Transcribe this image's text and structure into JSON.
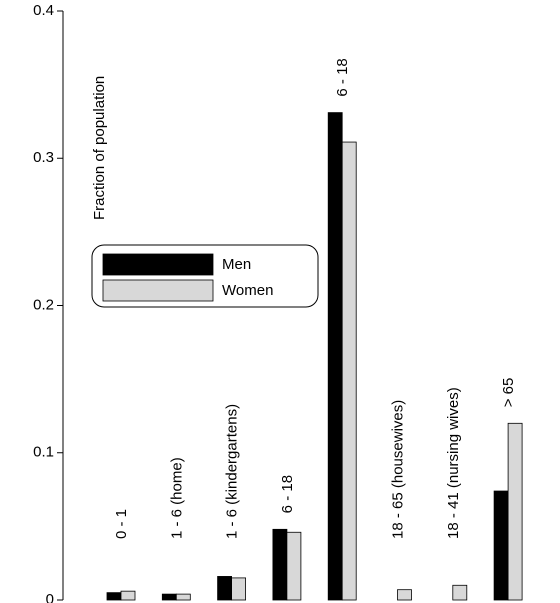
{
  "chart_data": {
    "type": "bar",
    "y_label": "Fraction of population",
    "categories": [
      "0 - 1",
      "1 - 6 (home)",
      "1 - 6 (kindergartens)",
      "6 - 18",
      "6 - 18",
      "18 - 65 (housewives)",
      "18 - 41 (nursing wives)",
      "> 65"
    ],
    "series": [
      {
        "name": "Men",
        "color": "#000000",
        "values": [
          0.005,
          0.004,
          0.016,
          0.048,
          0.331,
          0,
          0,
          0.074
        ]
      },
      {
        "name": "Women",
        "color": "#d8d8d8",
        "values": [
          0.006,
          0.004,
          0.015,
          0.046,
          0.311,
          0.007,
          0.01,
          0.12
        ]
      }
    ],
    "ylim": [
      0,
      0.4
    ],
    "yticks": [
      0,
      0.1,
      0.2,
      0.3,
      0.4
    ],
    "grid": false,
    "legend": "upper left"
  }
}
